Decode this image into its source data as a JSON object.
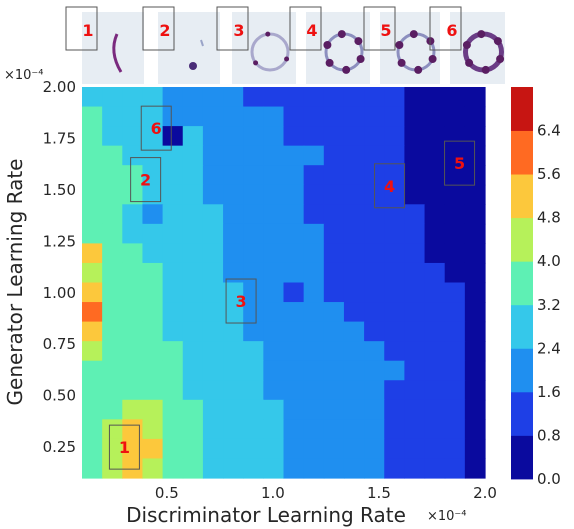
{
  "chart_data": {
    "type": "heatmap",
    "xlabel": "Discriminator Learning Rate",
    "ylabel": "Generator Learning Rate",
    "x_exponent": "×10⁻⁴",
    "y_exponent": "×10⁻⁴",
    "xlim": [
      0.1,
      2.0
    ],
    "ylim": [
      0.1,
      2.0
    ],
    "x_ticks": [
      "0.5",
      "1.0",
      "1.5",
      "2.0"
    ],
    "x_tick_values": [
      0.5,
      1.0,
      1.5,
      2.0
    ],
    "y_ticks": [
      "0.25",
      "0.50",
      "0.75",
      "1.00",
      "1.25",
      "1.50",
      "1.75",
      "2.00"
    ],
    "y_tick_values": [
      0.25,
      0.5,
      0.75,
      1.0,
      1.25,
      1.5,
      1.75,
      2.0
    ],
    "colorbar": {
      "levels": [
        0.0,
        0.8,
        1.6,
        2.4,
        3.2,
        4.0,
        4.8,
        5.6,
        6.4
      ],
      "labels": [
        "0.0",
        "0.8",
        "1.6",
        "2.4",
        "3.2",
        "4.0",
        "4.8",
        "5.6",
        "6.4"
      ],
      "colors": [
        "#0a0a9e",
        "#1e3fe6",
        "#1f8ff0",
        "#35c8ea",
        "#5ef0b4",
        "#b6f15a",
        "#fcc83c",
        "#ff6a22",
        "#c71512"
      ]
    },
    "z_grid": {
      "x": [
        0.1,
        0.2,
        0.3,
        0.4,
        0.5,
        0.6,
        0.7,
        0.8,
        0.9,
        1.0,
        1.1,
        1.2,
        1.3,
        1.4,
        1.5,
        1.6,
        1.7,
        1.8,
        1.9,
        2.0
      ],
      "y": [
        2.0,
        1.9,
        1.8,
        1.7,
        1.6,
        1.5,
        1.4,
        1.3,
        1.2,
        1.1,
        1.0,
        0.9,
        0.8,
        0.7,
        0.6,
        0.5,
        0.4,
        0.3,
        0.2,
        0.1
      ],
      "rows": [
        [
          2.9,
          2.7,
          2.5,
          2.4,
          2.3,
          2.1,
          1.9,
          1.7,
          1.5,
          1.4,
          1.2,
          1.0,
          0.9,
          0.9,
          0.9,
          0.8,
          0.7,
          0.6,
          0.5,
          0.3
        ],
        [
          3.3,
          3.0,
          2.8,
          2.6,
          2.0,
          2.3,
          2.0,
          1.9,
          1.7,
          1.6,
          1.4,
          1.2,
          1.0,
          0.9,
          0.9,
          0.8,
          0.7,
          0.6,
          0.5,
          0.3
        ],
        [
          3.3,
          3.1,
          2.8,
          2.6,
          0.6,
          2.4,
          2.1,
          1.9,
          1.8,
          1.7,
          1.5,
          1.3,
          1.1,
          1.0,
          0.9,
          0.8,
          0.6,
          0.6,
          0.5,
          0.3
        ],
        [
          3.6,
          3.3,
          3.0,
          2.8,
          2.5,
          2.4,
          2.2,
          2.0,
          1.8,
          1.7,
          1.6,
          1.9,
          1.1,
          1.0,
          0.9,
          0.8,
          0.7,
          0.6,
          0.6,
          0.3
        ],
        [
          3.4,
          3.6,
          3.3,
          2.9,
          2.6,
          2.5,
          2.2,
          2.0,
          1.9,
          1.8,
          1.6,
          1.5,
          1.2,
          1.0,
          0.9,
          0.8,
          0.7,
          0.6,
          0.3,
          0.3
        ],
        [
          3.5,
          3.8,
          3.2,
          2.8,
          2.6,
          2.5,
          2.3,
          2.1,
          2.0,
          1.8,
          1.6,
          1.5,
          1.3,
          1.1,
          0.9,
          0.8,
          0.7,
          0.7,
          0.4,
          0.3
        ],
        [
          3.6,
          3.3,
          3.1,
          2.0,
          2.7,
          2.5,
          2.4,
          2.1,
          2.0,
          1.9,
          1.7,
          1.5,
          1.3,
          1.1,
          0.9,
          0.8,
          0.8,
          0.7,
          0.6,
          0.3
        ],
        [
          3.7,
          3.4,
          3.1,
          2.9,
          2.8,
          2.6,
          2.4,
          2.2,
          2.1,
          1.9,
          1.7,
          1.6,
          1.4,
          1.2,
          1.0,
          0.9,
          0.8,
          0.6,
          0.5,
          0.3
        ],
        [
          5.5,
          3.6,
          3.2,
          3.0,
          2.9,
          2.7,
          2.5,
          2.2,
          2.1,
          2.0,
          1.8,
          1.6,
          1.5,
          1.2,
          1.0,
          0.9,
          0.9,
          0.7,
          0.6,
          0.3
        ],
        [
          4.2,
          3.9,
          3.4,
          3.2,
          3.0,
          2.7,
          2.6,
          2.3,
          2.1,
          2.0,
          1.9,
          1.7,
          1.5,
          1.4,
          1.3,
          1.0,
          0.9,
          0.8,
          0.7,
          0.3
        ],
        [
          5.0,
          3.8,
          3.7,
          3.4,
          3.1,
          2.9,
          2.7,
          2.4,
          2.2,
          2.1,
          1.2,
          1.7,
          1.5,
          1.5,
          1.3,
          1.1,
          1.0,
          0.9,
          0.8,
          0.3
        ],
        [
          5.9,
          3.8,
          3.5,
          3.4,
          3.1,
          2.9,
          2.6,
          2.5,
          2.3,
          2.1,
          1.9,
          1.8,
          1.6,
          1.5,
          1.4,
          1.3,
          1.1,
          1.0,
          0.9,
          0.3
        ],
        [
          5.0,
          3.6,
          3.4,
          3.3,
          3.1,
          2.9,
          2.7,
          2.5,
          2.3,
          2.2,
          2.0,
          1.9,
          1.7,
          1.6,
          1.5,
          1.4,
          1.3,
          1.2,
          1.1,
          0.3
        ],
        [
          4.0,
          3.8,
          3.7,
          3.5,
          3.3,
          3.0,
          2.8,
          2.6,
          2.4,
          2.2,
          2.1,
          1.9,
          1.8,
          1.7,
          1.6,
          1.5,
          1.4,
          1.3,
          1.1,
          0.3
        ],
        [
          3.9,
          3.8,
          3.7,
          3.5,
          3.3,
          3.1,
          2.8,
          2.6,
          2.4,
          2.3,
          2.1,
          2.0,
          1.9,
          1.8,
          1.7,
          1.6,
          1.5,
          1.3,
          1.0,
          0.3
        ],
        [
          3.8,
          3.9,
          3.8,
          3.6,
          3.4,
          3.1,
          2.9,
          2.7,
          2.5,
          2.3,
          2.1,
          2.0,
          1.8,
          1.7,
          1.6,
          1.5,
          1.4,
          1.2,
          1.0,
          0.3
        ],
        [
          3.6,
          3.8,
          4.0,
          4.1,
          3.5,
          3.2,
          2.9,
          2.7,
          2.5,
          2.4,
          2.2,
          2.0,
          1.9,
          1.8,
          1.6,
          1.5,
          1.4,
          1.2,
          1.1,
          0.3
        ],
        [
          3.6,
          4.0,
          4.8,
          4.6,
          3.7,
          3.3,
          3.0,
          2.8,
          2.6,
          2.4,
          2.2,
          2.1,
          1.9,
          1.8,
          1.6,
          1.5,
          1.4,
          1.3,
          1.1,
          0.3
        ],
        [
          3.7,
          4.2,
          5.0,
          4.8,
          3.9,
          3.4,
          3.1,
          2.8,
          2.6,
          2.4,
          2.3,
          2.1,
          2.0,
          1.8,
          1.7,
          1.5,
          1.4,
          1.3,
          1.1,
          0.3
        ],
        [
          3.8,
          4.0,
          4.9,
          4.6,
          3.8,
          3.3,
          3.0,
          2.8,
          2.6,
          2.4,
          2.2,
          2.1,
          1.9,
          1.8,
          1.7,
          1.5,
          1.4,
          1.3,
          1.1,
          0.3
        ]
      ]
    },
    "annotations": [
      {
        "label": "1",
        "x": 0.3,
        "y": 0.25
      },
      {
        "label": "2",
        "x": 0.4,
        "y": 1.55
      },
      {
        "label": "3",
        "x": 0.85,
        "y": 0.96
      },
      {
        "label": "4",
        "x": 1.55,
        "y": 1.52
      },
      {
        "label": "5",
        "x": 1.88,
        "y": 1.63
      },
      {
        "label": "6",
        "x": 0.45,
        "y": 1.8
      }
    ],
    "thumbnails": [
      {
        "label": "1",
        "shape": "arc"
      },
      {
        "label": "2",
        "shape": "two-points"
      },
      {
        "label": "3",
        "shape": "ring-faint"
      },
      {
        "label": "4",
        "shape": "ring-dots"
      },
      {
        "label": "5",
        "shape": "ring-dots"
      },
      {
        "label": "6",
        "shape": "ring-solid"
      }
    ]
  }
}
